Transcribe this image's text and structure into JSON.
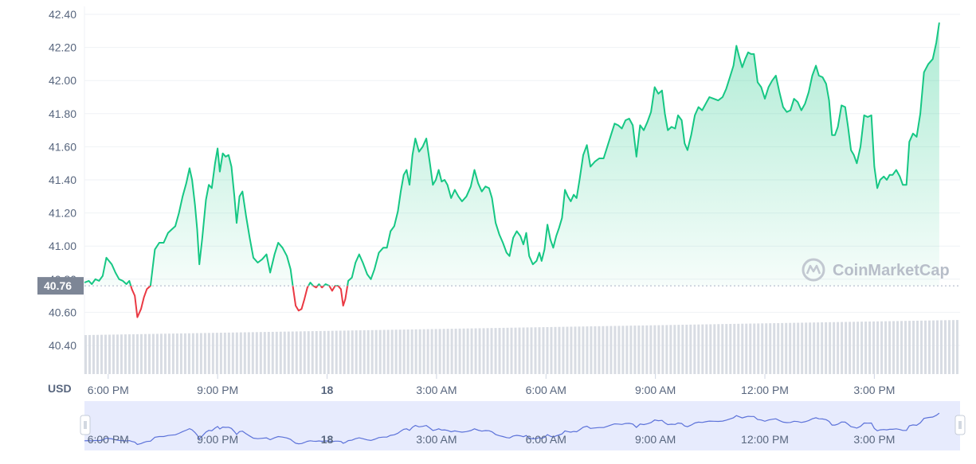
{
  "chart_data": {
    "type": "line",
    "unit_label": "USD",
    "current_value": 40.76,
    "current_value_label": "40.76",
    "y_ticks": [
      40.4,
      40.6,
      40.8,
      41.0,
      41.2,
      41.4,
      41.6,
      41.8,
      42.0,
      42.2,
      42.4
    ],
    "y_tick_labels": [
      "40.40",
      "40.60",
      "40.80",
      "41.00",
      "41.20",
      "41.40",
      "41.60",
      "41.80",
      "42.00",
      "42.20",
      "42.40"
    ],
    "ylim": [
      40.2,
      42.45
    ],
    "x_ticks": [
      {
        "label": "6:00 PM",
        "bold": false
      },
      {
        "label": "9:00 PM",
        "bold": false
      },
      {
        "label": "18",
        "bold": true
      },
      {
        "label": "3:00 AM",
        "bold": false
      },
      {
        "label": "6:00 AM",
        "bold": false
      },
      {
        "label": "9:00 AM",
        "bold": false
      },
      {
        "label": "12:00 PM",
        "bold": false
      },
      {
        "label": "3:00 PM",
        "bold": false
      }
    ],
    "x_tick_hours": [
      18,
      21,
      24,
      27,
      30,
      33,
      36,
      39
    ],
    "x_range_hours": [
      17.35,
      41.35
    ],
    "series": [
      {
        "points": [
          [
            17.35,
            40.78
          ],
          [
            17.47,
            40.79
          ],
          [
            17.55,
            40.77
          ],
          [
            17.65,
            40.8
          ],
          [
            17.75,
            40.79
          ],
          [
            17.85,
            40.82
          ],
          [
            17.95,
            40.93
          ],
          [
            18.1,
            40.89
          ],
          [
            18.2,
            40.84
          ],
          [
            18.3,
            40.8
          ],
          [
            18.4,
            40.79
          ],
          [
            18.5,
            40.77
          ],
          [
            18.58,
            40.79
          ],
          [
            18.65,
            40.74
          ],
          [
            18.73,
            40.7
          ],
          [
            18.8,
            40.57
          ],
          [
            18.9,
            40.62
          ],
          [
            18.98,
            40.69
          ],
          [
            19.06,
            40.74
          ],
          [
            19.16,
            40.76
          ],
          [
            19.28,
            40.98
          ],
          [
            19.4,
            41.02
          ],
          [
            19.52,
            41.02
          ],
          [
            19.64,
            41.08
          ],
          [
            19.74,
            41.1
          ],
          [
            19.84,
            41.12
          ],
          [
            19.94,
            41.2
          ],
          [
            20.04,
            41.3
          ],
          [
            20.14,
            41.38
          ],
          [
            20.23,
            41.47
          ],
          [
            20.3,
            41.4
          ],
          [
            20.38,
            41.25
          ],
          [
            20.44,
            41.1
          ],
          [
            20.5,
            40.89
          ],
          [
            20.58,
            41.05
          ],
          [
            20.68,
            41.28
          ],
          [
            20.76,
            41.37
          ],
          [
            20.84,
            41.35
          ],
          [
            20.93,
            41.5
          ],
          [
            21.0,
            41.59
          ],
          [
            21.06,
            41.45
          ],
          [
            21.14,
            41.56
          ],
          [
            21.22,
            41.54
          ],
          [
            21.3,
            41.55
          ],
          [
            21.38,
            41.48
          ],
          [
            21.46,
            41.3
          ],
          [
            21.52,
            41.14
          ],
          [
            21.6,
            41.3
          ],
          [
            21.68,
            41.33
          ],
          [
            21.78,
            41.18
          ],
          [
            21.88,
            41.05
          ],
          [
            21.98,
            40.93
          ],
          [
            22.1,
            40.9
          ],
          [
            22.22,
            40.92
          ],
          [
            22.34,
            40.95
          ],
          [
            22.44,
            40.84
          ],
          [
            22.56,
            40.95
          ],
          [
            22.66,
            41.02
          ],
          [
            22.78,
            40.99
          ],
          [
            22.9,
            40.94
          ],
          [
            23.0,
            40.86
          ],
          [
            23.06,
            40.76
          ],
          [
            23.14,
            40.64
          ],
          [
            23.22,
            40.61
          ],
          [
            23.3,
            40.62
          ],
          [
            23.38,
            40.68
          ],
          [
            23.46,
            40.75
          ],
          [
            23.54,
            40.78
          ],
          [
            23.62,
            40.76
          ],
          [
            23.7,
            40.75
          ],
          [
            23.78,
            40.77
          ],
          [
            23.86,
            40.75
          ],
          [
            23.96,
            40.77
          ],
          [
            24.06,
            40.76
          ],
          [
            24.14,
            40.73
          ],
          [
            24.22,
            40.76
          ],
          [
            24.3,
            40.76
          ],
          [
            24.38,
            40.74
          ],
          [
            24.44,
            40.64
          ],
          [
            24.5,
            40.68
          ],
          [
            24.58,
            40.79
          ],
          [
            24.68,
            40.81
          ],
          [
            24.78,
            40.9
          ],
          [
            24.88,
            40.95
          ],
          [
            24.98,
            40.9
          ],
          [
            25.1,
            40.83
          ],
          [
            25.2,
            40.8
          ],
          [
            25.3,
            40.86
          ],
          [
            25.42,
            40.96
          ],
          [
            25.54,
            40.99
          ],
          [
            25.64,
            40.99
          ],
          [
            25.74,
            41.09
          ],
          [
            25.84,
            41.12
          ],
          [
            25.94,
            41.21
          ],
          [
            26.02,
            41.33
          ],
          [
            26.1,
            41.43
          ],
          [
            26.18,
            41.46
          ],
          [
            26.26,
            41.37
          ],
          [
            26.34,
            41.55
          ],
          [
            26.42,
            41.65
          ],
          [
            26.52,
            41.57
          ],
          [
            26.62,
            41.6
          ],
          [
            26.72,
            41.65
          ],
          [
            26.82,
            41.5
          ],
          [
            26.9,
            41.37
          ],
          [
            26.98,
            41.4
          ],
          [
            27.06,
            41.46
          ],
          [
            27.14,
            41.39
          ],
          [
            27.22,
            41.4
          ],
          [
            27.3,
            41.37
          ],
          [
            27.4,
            41.29
          ],
          [
            27.5,
            41.34
          ],
          [
            27.6,
            41.3
          ],
          [
            27.7,
            41.27
          ],
          [
            27.82,
            41.3
          ],
          [
            27.94,
            41.36
          ],
          [
            28.04,
            41.46
          ],
          [
            28.14,
            41.38
          ],
          [
            28.24,
            41.33
          ],
          [
            28.34,
            41.36
          ],
          [
            28.44,
            41.35
          ],
          [
            28.52,
            41.29
          ],
          [
            28.62,
            41.14
          ],
          [
            28.72,
            41.07
          ],
          [
            28.82,
            41.02
          ],
          [
            28.92,
            40.96
          ],
          [
            29.0,
            40.94
          ],
          [
            29.1,
            41.05
          ],
          [
            29.2,
            41.09
          ],
          [
            29.3,
            41.06
          ],
          [
            29.38,
            41.01
          ],
          [
            29.46,
            41.08
          ],
          [
            29.54,
            40.94
          ],
          [
            29.64,
            40.89
          ],
          [
            29.74,
            40.91
          ],
          [
            29.82,
            40.96
          ],
          [
            29.88,
            40.91
          ],
          [
            29.96,
            40.98
          ],
          [
            30.04,
            41.13
          ],
          [
            30.12,
            41.04
          ],
          [
            30.2,
            40.99
          ],
          [
            30.28,
            41.06
          ],
          [
            30.36,
            41.11
          ],
          [
            30.44,
            41.17
          ],
          [
            30.52,
            41.34
          ],
          [
            30.6,
            41.3
          ],
          [
            30.68,
            41.27
          ],
          [
            30.76,
            41.31
          ],
          [
            30.84,
            41.29
          ],
          [
            30.92,
            41.4
          ],
          [
            31.02,
            41.55
          ],
          [
            31.12,
            41.61
          ],
          [
            31.22,
            41.48
          ],
          [
            31.34,
            41.51
          ],
          [
            31.46,
            41.53
          ],
          [
            31.58,
            41.53
          ],
          [
            31.68,
            41.6
          ],
          [
            31.78,
            41.67
          ],
          [
            31.88,
            41.74
          ],
          [
            31.98,
            41.73
          ],
          [
            32.08,
            41.71
          ],
          [
            32.18,
            41.76
          ],
          [
            32.28,
            41.77
          ],
          [
            32.38,
            41.73
          ],
          [
            32.48,
            41.54
          ],
          [
            32.58,
            41.73
          ],
          [
            32.68,
            41.7
          ],
          [
            32.78,
            41.75
          ],
          [
            32.88,
            41.81
          ],
          [
            32.98,
            41.96
          ],
          [
            33.08,
            41.92
          ],
          [
            33.18,
            41.94
          ],
          [
            33.26,
            41.8
          ],
          [
            33.34,
            41.7
          ],
          [
            33.44,
            41.72
          ],
          [
            33.54,
            41.71
          ],
          [
            33.62,
            41.79
          ],
          [
            33.72,
            41.76
          ],
          [
            33.8,
            41.62
          ],
          [
            33.88,
            41.58
          ],
          [
            33.98,
            41.67
          ],
          [
            34.08,
            41.79
          ],
          [
            34.18,
            41.84
          ],
          [
            34.28,
            41.82
          ],
          [
            34.38,
            41.86
          ],
          [
            34.48,
            41.9
          ],
          [
            34.6,
            41.89
          ],
          [
            34.72,
            41.88
          ],
          [
            34.84,
            41.9
          ],
          [
            34.94,
            41.95
          ],
          [
            35.04,
            42.02
          ],
          [
            35.14,
            42.09
          ],
          [
            35.22,
            42.21
          ],
          [
            35.3,
            42.14
          ],
          [
            35.38,
            42.08
          ],
          [
            35.46,
            42.13
          ],
          [
            35.54,
            42.17
          ],
          [
            35.62,
            42.16
          ],
          [
            35.7,
            42.16
          ],
          [
            35.8,
            41.99
          ],
          [
            35.9,
            41.96
          ],
          [
            36.0,
            41.89
          ],
          [
            36.1,
            41.96
          ],
          [
            36.2,
            42.0
          ],
          [
            36.3,
            42.03
          ],
          [
            36.4,
            41.93
          ],
          [
            36.5,
            41.84
          ],
          [
            36.6,
            41.81
          ],
          [
            36.7,
            41.82
          ],
          [
            36.8,
            41.89
          ],
          [
            36.9,
            41.87
          ],
          [
            37.0,
            41.82
          ],
          [
            37.1,
            41.86
          ],
          [
            37.2,
            41.93
          ],
          [
            37.3,
            42.03
          ],
          [
            37.4,
            42.09
          ],
          [
            37.48,
            42.03
          ],
          [
            37.58,
            42.02
          ],
          [
            37.68,
            41.98
          ],
          [
            37.76,
            41.88
          ],
          [
            37.84,
            41.67
          ],
          [
            37.92,
            41.67
          ],
          [
            38.0,
            41.72
          ],
          [
            38.1,
            41.85
          ],
          [
            38.2,
            41.84
          ],
          [
            38.28,
            41.72
          ],
          [
            38.36,
            41.58
          ],
          [
            38.44,
            41.55
          ],
          [
            38.52,
            41.5
          ],
          [
            38.62,
            41.6
          ],
          [
            38.72,
            41.79
          ],
          [
            38.82,
            41.78
          ],
          [
            38.92,
            41.79
          ],
          [
            39.0,
            41.48
          ],
          [
            39.08,
            41.35
          ],
          [
            39.16,
            41.4
          ],
          [
            39.26,
            41.42
          ],
          [
            39.34,
            41.4
          ],
          [
            39.42,
            41.43
          ],
          [
            39.5,
            41.43
          ],
          [
            39.6,
            41.46
          ],
          [
            39.7,
            41.42
          ],
          [
            39.78,
            41.37
          ],
          [
            39.88,
            41.37
          ],
          [
            39.96,
            41.63
          ],
          [
            40.06,
            41.68
          ],
          [
            40.16,
            41.66
          ],
          [
            40.26,
            41.8
          ],
          [
            40.36,
            42.05
          ],
          [
            40.48,
            42.1
          ],
          [
            40.6,
            42.13
          ],
          [
            40.7,
            42.23
          ],
          [
            40.78,
            42.35
          ]
        ]
      }
    ],
    "grid": "horizontal",
    "watermark": "CoinMarketCap"
  }
}
